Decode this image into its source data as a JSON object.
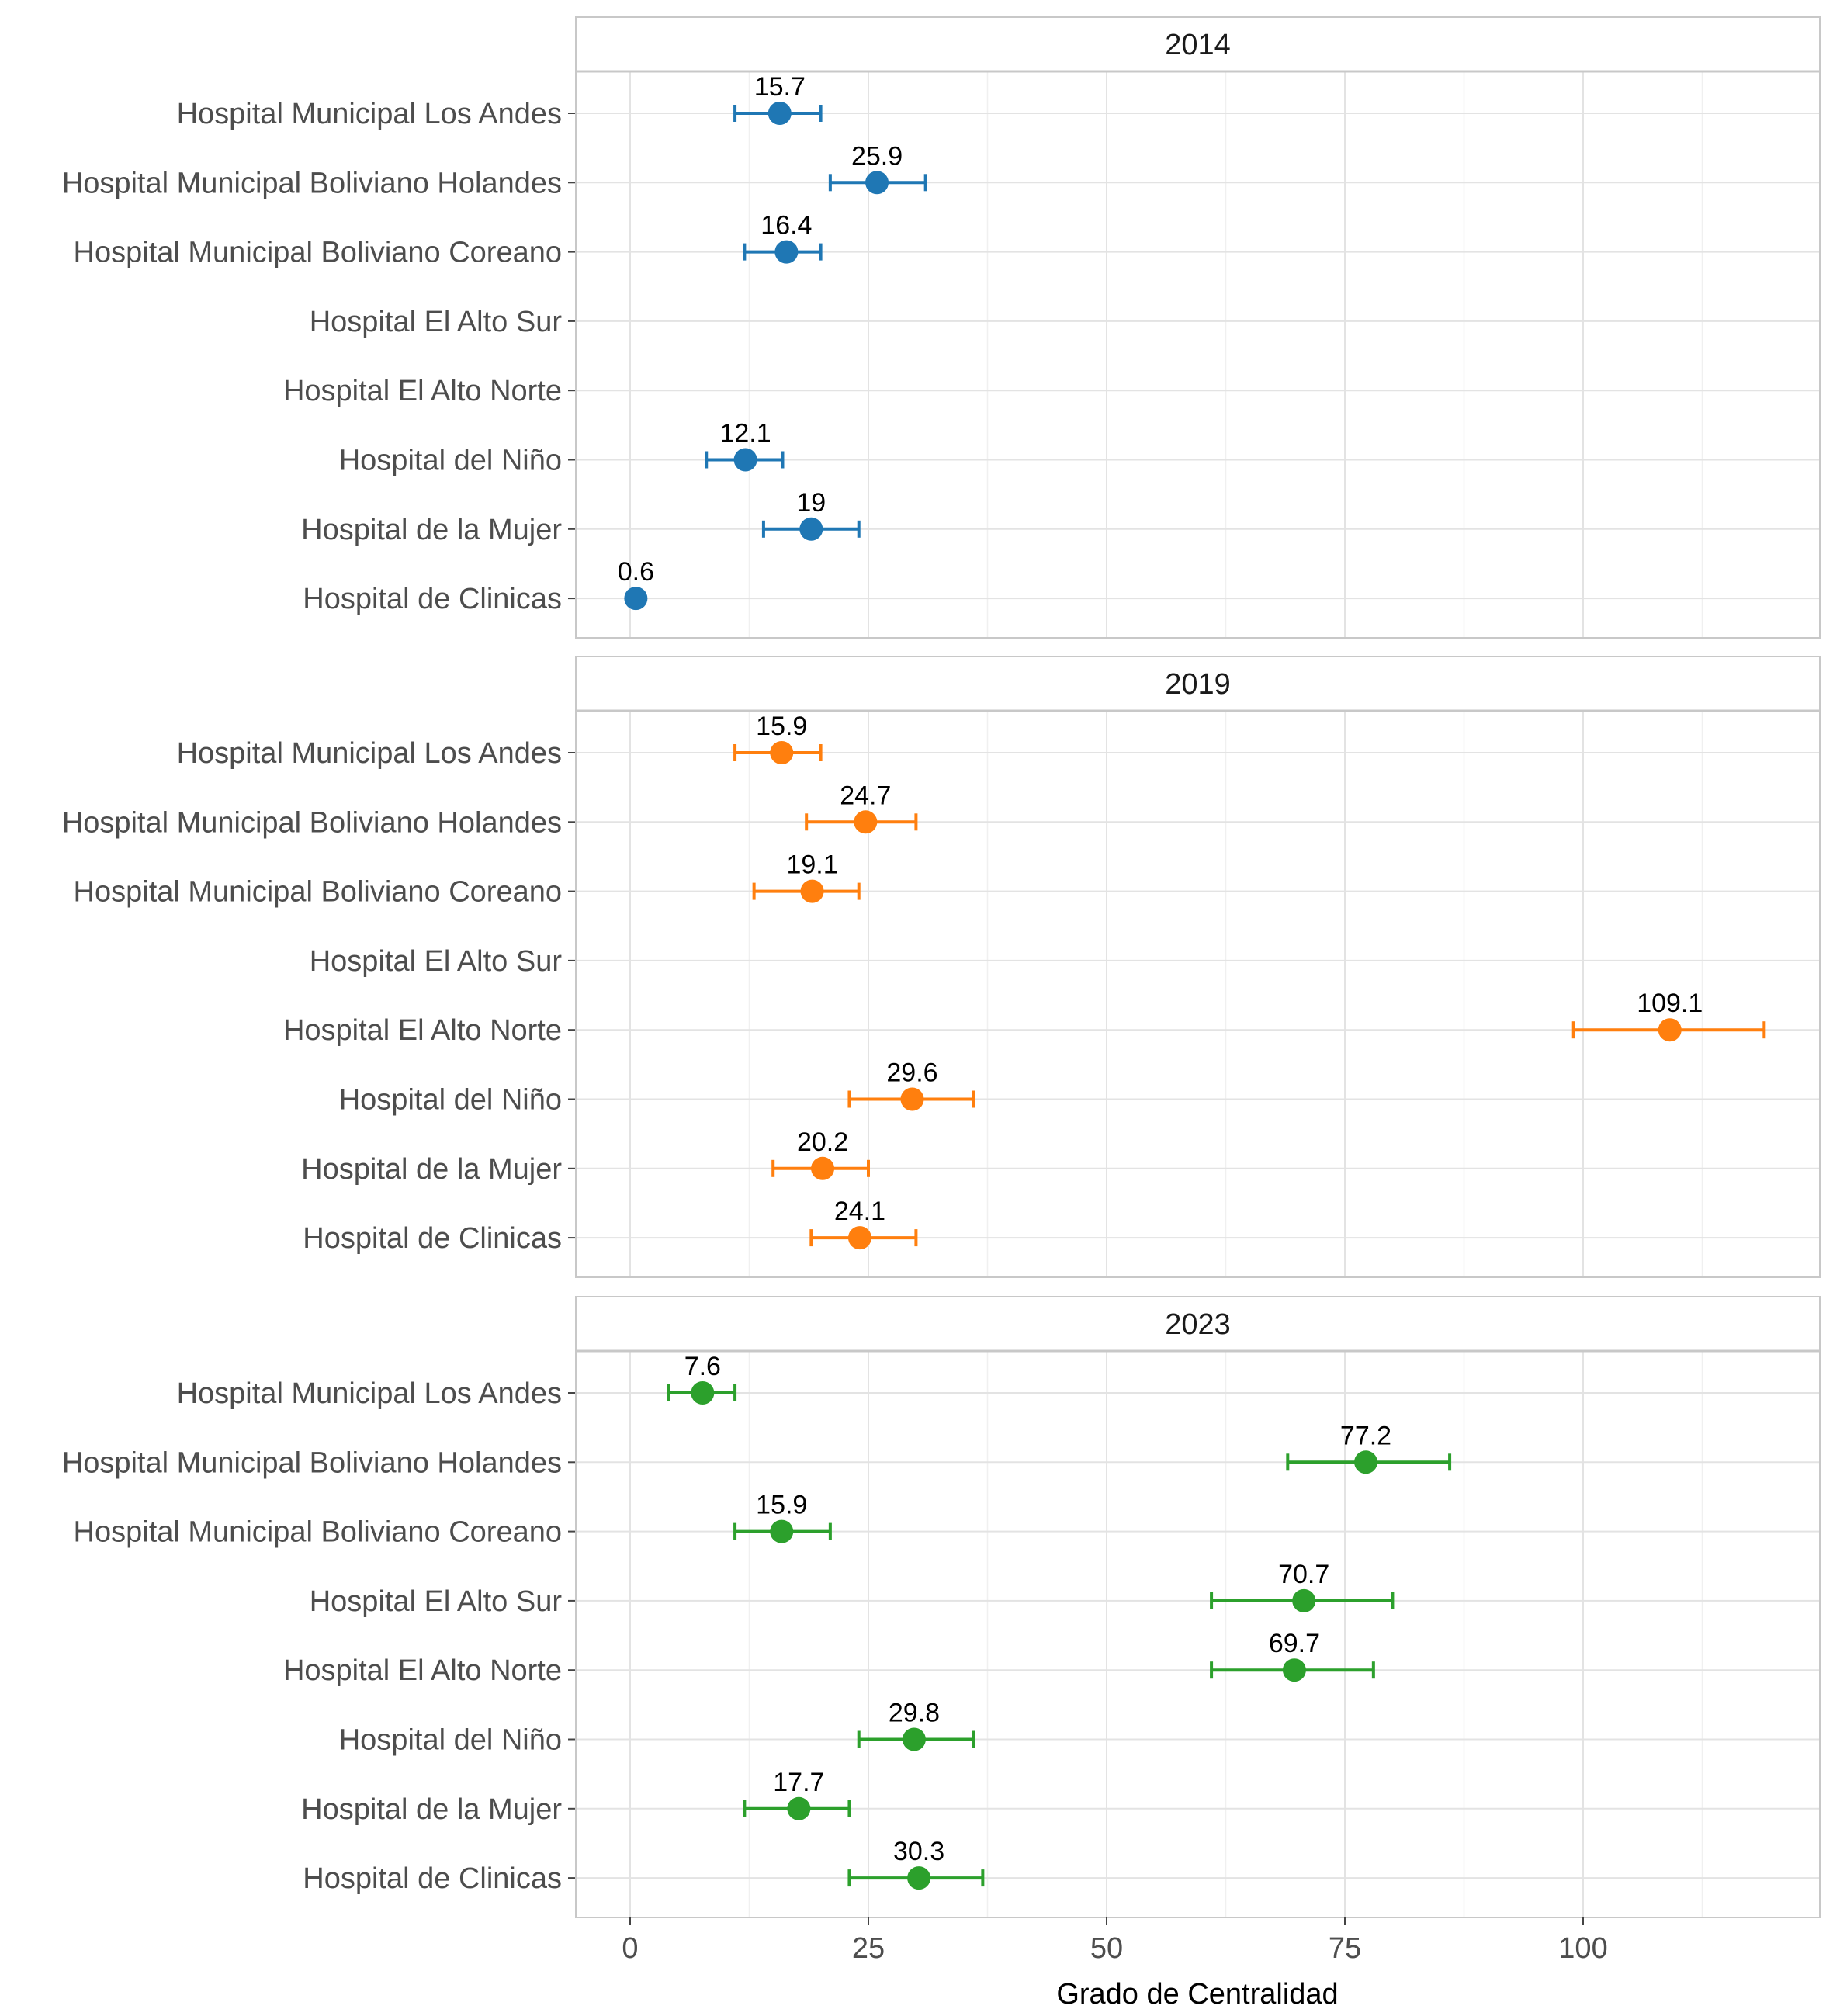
{
  "chart_data": {
    "type": "scatter",
    "subtype": "point-with-error-bars, faceted",
    "xlabel": "Grado de Centralidad",
    "ylabel": "",
    "xlim": [
      -6,
      125
    ],
    "x_ticks": [
      0,
      25,
      50,
      75,
      100
    ],
    "grid": true,
    "legend": "none",
    "categories": [
      "Hospital Municipal Los Andes",
      "Hospital Municipal Boliviano Holandes",
      "Hospital Municipal Boliviano Coreano",
      "Hospital El Alto Sur",
      "Hospital El Alto Norte",
      "Hospital del Niño",
      "Hospital de la Mujer",
      "Hospital de Clinicas"
    ],
    "facets": [
      {
        "label": "2014",
        "color": "#1f77b4",
        "points": [
          {
            "category": "Hospital Municipal Los Andes",
            "value": 15.7,
            "low": 11,
            "high": 20,
            "label": "15.7"
          },
          {
            "category": "Hospital Municipal Boliviano Holandes",
            "value": 25.9,
            "low": 21,
            "high": 31,
            "label": "25.9"
          },
          {
            "category": "Hospital Municipal Boliviano Coreano",
            "value": 16.4,
            "low": 12,
            "high": 20,
            "label": "16.4"
          },
          {
            "category": "Hospital del Niño",
            "value": 12.1,
            "low": 8,
            "high": 16,
            "label": "12.1"
          },
          {
            "category": "Hospital de la Mujer",
            "value": 19,
            "low": 14,
            "high": 24,
            "label": "19"
          },
          {
            "category": "Hospital de Clinicas",
            "value": 0.6,
            "low": 0.6,
            "high": 0.6,
            "label": "0.6"
          }
        ]
      },
      {
        "label": "2019",
        "color": "#ff7f0e",
        "points": [
          {
            "category": "Hospital Municipal Los Andes",
            "value": 15.9,
            "low": 11,
            "high": 20,
            "label": "15.9"
          },
          {
            "category": "Hospital Municipal Boliviano Holandes",
            "value": 24.7,
            "low": 18.5,
            "high": 30,
            "label": "24.7"
          },
          {
            "category": "Hospital Municipal Boliviano Coreano",
            "value": 19.1,
            "low": 13,
            "high": 24,
            "label": "19.1"
          },
          {
            "category": "Hospital El Alto Norte",
            "value": 109.1,
            "low": 99,
            "high": 119,
            "label": "109.1"
          },
          {
            "category": "Hospital del Niño",
            "value": 29.6,
            "low": 23,
            "high": 36,
            "label": "29.6"
          },
          {
            "category": "Hospital de la Mujer",
            "value": 20.2,
            "low": 15,
            "high": 25,
            "label": "20.2"
          },
          {
            "category": "Hospital de Clinicas",
            "value": 24.1,
            "low": 19,
            "high": 30,
            "label": "24.1"
          }
        ]
      },
      {
        "label": "2023",
        "color": "#2ca02c",
        "points": [
          {
            "category": "Hospital Municipal Los Andes",
            "value": 7.6,
            "low": 4,
            "high": 11,
            "label": "7.6"
          },
          {
            "category": "Hospital Municipal Boliviano Holandes",
            "value": 77.2,
            "low": 69,
            "high": 86,
            "label": "77.2"
          },
          {
            "category": "Hospital Municipal Boliviano Coreano",
            "value": 15.9,
            "low": 11,
            "high": 21,
            "label": "15.9"
          },
          {
            "category": "Hospital El Alto Sur",
            "value": 70.7,
            "low": 61,
            "high": 80,
            "label": "70.7"
          },
          {
            "category": "Hospital El Alto Norte",
            "value": 69.7,
            "low": 61,
            "high": 78,
            "label": "69.7"
          },
          {
            "category": "Hospital del Niño",
            "value": 29.8,
            "low": 24,
            "high": 36,
            "label": "29.8"
          },
          {
            "category": "Hospital de la Mujer",
            "value": 17.7,
            "low": 12,
            "high": 23,
            "label": "17.7"
          },
          {
            "category": "Hospital de Clinicas",
            "value": 30.3,
            "low": 23,
            "high": 37,
            "label": "30.3"
          }
        ]
      }
    ]
  }
}
